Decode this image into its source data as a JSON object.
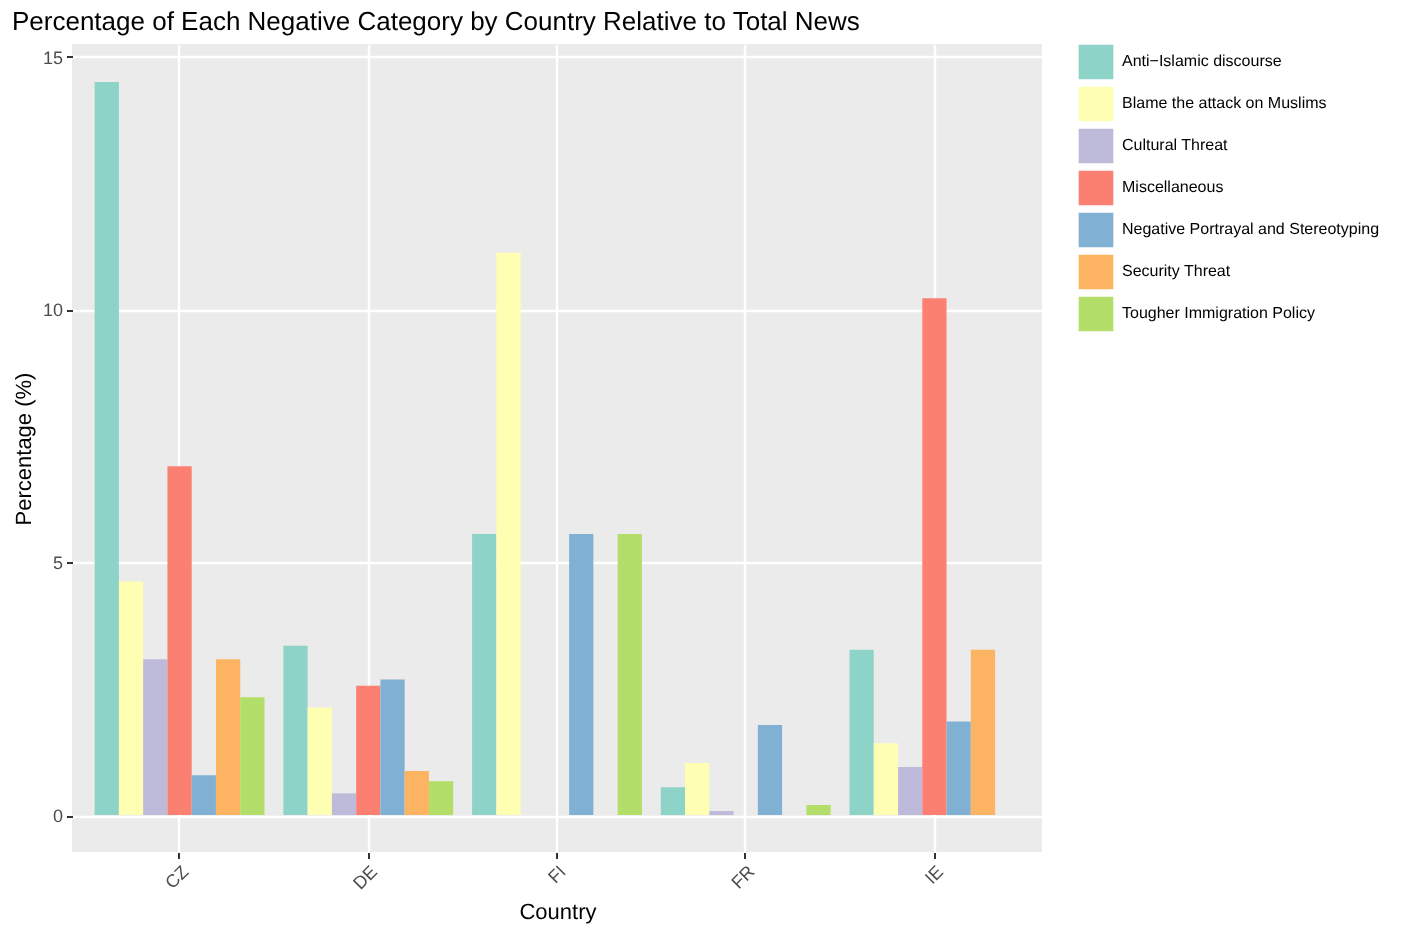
{
  "chart_data": {
    "type": "bar",
    "title": "Percentage of Each Negative Category by Country Relative to Total News",
    "xlabel": "Country",
    "ylabel": "Percentage (%)",
    "categories": [
      "CZ",
      "DE",
      "FI",
      "FR",
      "IE"
    ],
    "series": [
      {
        "name": "Anti−Islamic discourse",
        "color": "#8dd3c7",
        "values": [
          14.5,
          3.35,
          5.56,
          0.55,
          3.27
        ]
      },
      {
        "name": "Blame the attack on Muslims",
        "color": "#ffffb3",
        "values": [
          4.62,
          2.13,
          11.12,
          1.03,
          1.42
        ]
      },
      {
        "name": "Cultural Threat",
        "color": "#bebada",
        "values": [
          3.08,
          0.43,
          0,
          0.08,
          0.95
        ]
      },
      {
        "name": "Miscellaneous",
        "color": "#fb8072",
        "values": [
          6.9,
          2.56,
          0,
          0,
          10.22
        ]
      },
      {
        "name": "Negative Portrayal and Stereotyping",
        "color": "#80b1d3",
        "values": [
          0.79,
          2.68,
          5.56,
          1.78,
          1.85
        ]
      },
      {
        "name": "Security Threat",
        "color": "#fdb462",
        "values": [
          3.08,
          0.87,
          0,
          0,
          3.27
        ]
      },
      {
        "name": "Tougher Immigration Policy",
        "color": "#b3de69",
        "values": [
          2.33,
          0.67,
          5.56,
          0.2,
          0
        ]
      }
    ],
    "ylim": [
      -0.73,
      15.25
    ],
    "yticks": [
      0,
      5,
      10,
      15
    ],
    "grid": true,
    "legend": "right"
  }
}
